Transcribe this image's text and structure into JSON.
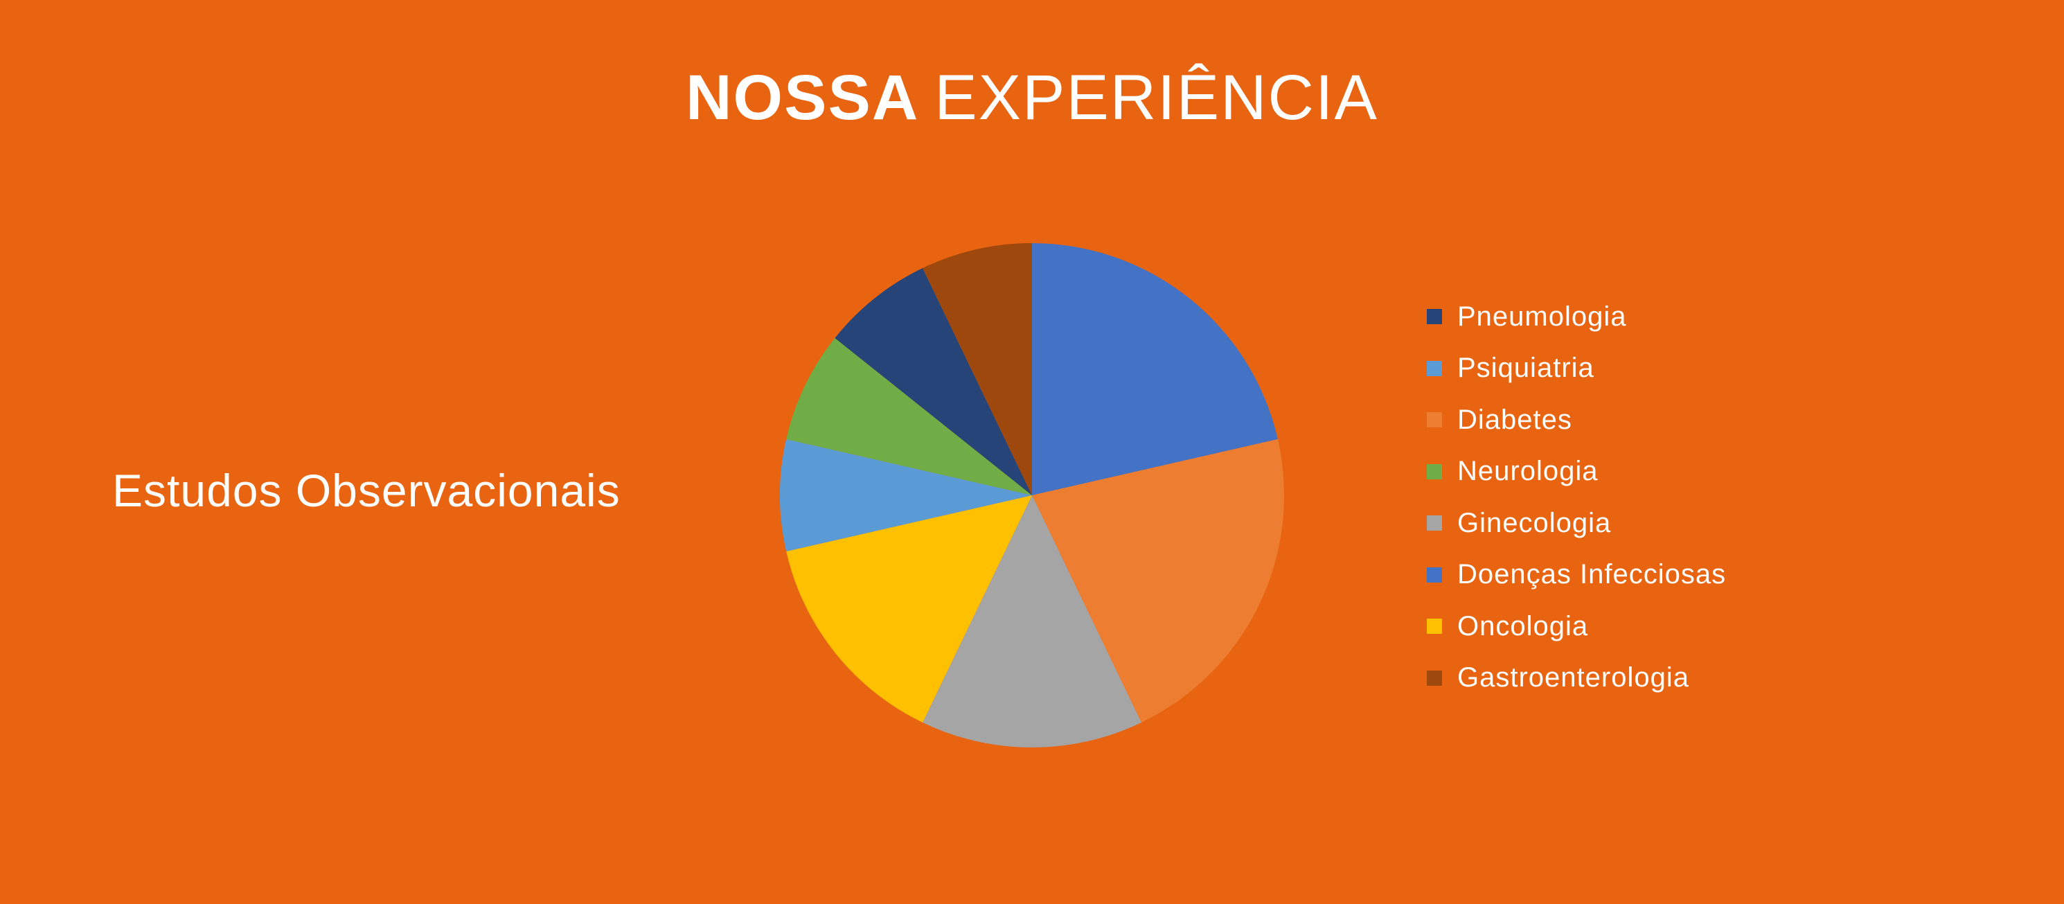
{
  "title": {
    "bold": "NOSSA",
    "light": "EXPERIÊNCIA"
  },
  "chart_data": {
    "type": "pie",
    "series_label": "Estudos Observacionais",
    "legend_position": "right",
    "start_angle_deg": 0,
    "direction": "clockwise",
    "slices": [
      {
        "label": "Pneumologia",
        "value": 7,
        "color": "#264478"
      },
      {
        "label": "Psiquiatria",
        "value": 7,
        "color": "#5B9BD5"
      },
      {
        "label": "Diabetes",
        "value": 21,
        "color": "#ED7D31"
      },
      {
        "label": "Neurologia",
        "value": 7,
        "color": "#70AD47"
      },
      {
        "label": "Ginecologia",
        "value": 14,
        "color": "#A5A5A5"
      },
      {
        "label": "Doenças Infecciosas",
        "value": 21,
        "color": "#4472C4"
      },
      {
        "label": "Oncologia",
        "value": 14,
        "color": "#FFC000"
      },
      {
        "label": "Gastroenterologia",
        "value": 7,
        "color": "#9E480E"
      }
    ],
    "draw_order": [
      "Doenças Infecciosas",
      "Diabetes",
      "Ginecologia",
      "Oncologia",
      "Psiquiatria",
      "Neurologia",
      "Pneumologia",
      "Gastroenterologia"
    ]
  }
}
